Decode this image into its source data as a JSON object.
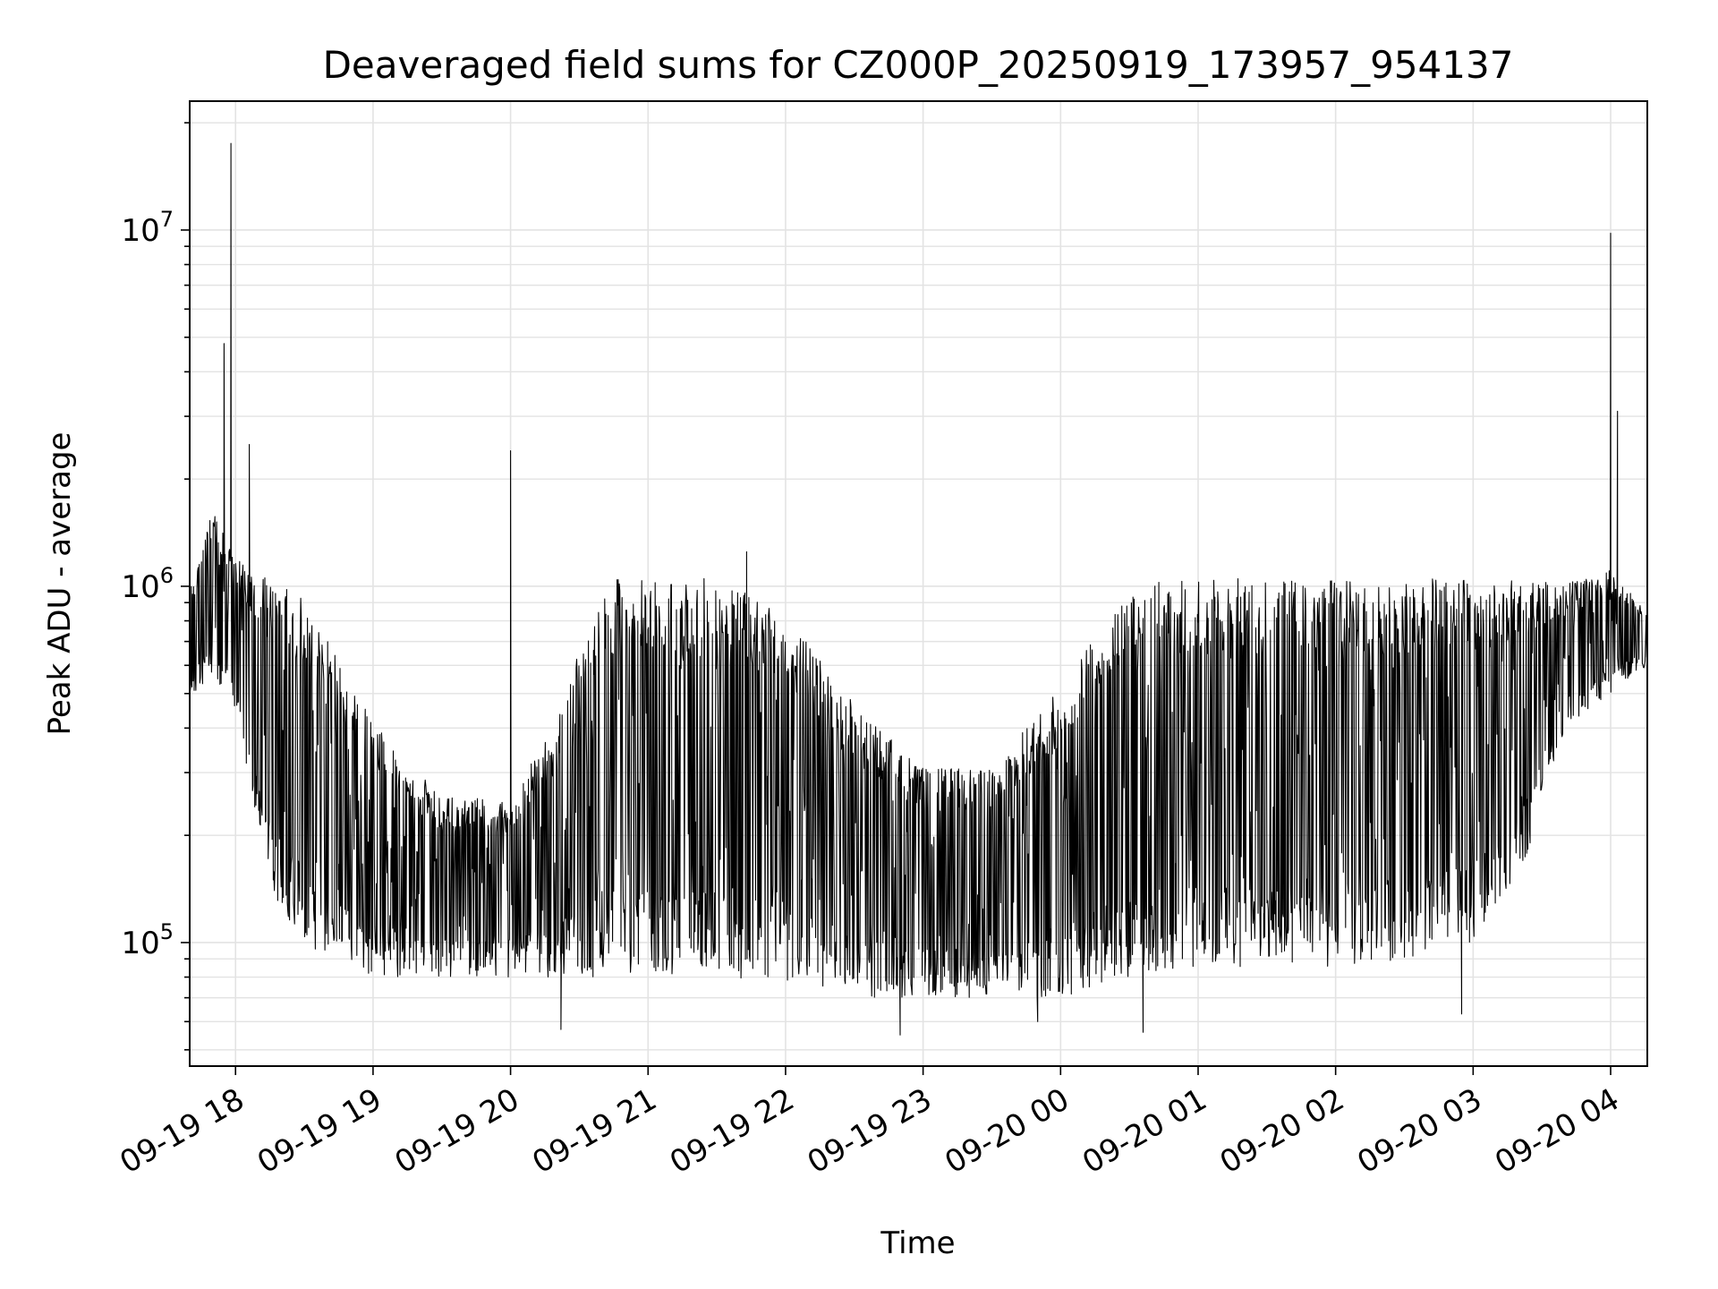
{
  "chart_data": {
    "type": "line",
    "title": "Deaveraged field sums for CZ000P_20250919_173957_954137",
    "xlabel": "Time",
    "ylabel": "Peak ADU - average",
    "yscale": "log",
    "ylim": [
      45000,
      23000000
    ],
    "xlim": [
      "2025-09-19 17:40",
      "2025-09-20 04:16"
    ],
    "grid": true,
    "line_color": "#000000",
    "grid_color": "#e3e3e3",
    "x_ticks": [
      {
        "value": "2025-09-19 18:00",
        "label": "09-19 18"
      },
      {
        "value": "2025-09-19 19:00",
        "label": "09-19 19"
      },
      {
        "value": "2025-09-19 20:00",
        "label": "09-19 20"
      },
      {
        "value": "2025-09-19 21:00",
        "label": "09-19 21"
      },
      {
        "value": "2025-09-19 22:00",
        "label": "09-19 22"
      },
      {
        "value": "2025-09-19 23:00",
        "label": "09-19 23"
      },
      {
        "value": "2025-09-20 00:00",
        "label": "09-20 00"
      },
      {
        "value": "2025-09-20 01:00",
        "label": "09-20 01"
      },
      {
        "value": "2025-09-20 02:00",
        "label": "09-20 02"
      },
      {
        "value": "2025-09-20 03:00",
        "label": "09-20 03"
      },
      {
        "value": "2025-09-20 04:00",
        "label": "09-20 04"
      }
    ],
    "y_ticks": [
      {
        "value": 100000,
        "base": "10",
        "exp": "5"
      },
      {
        "value": 1000000,
        "base": "10",
        "exp": "6"
      },
      {
        "value": 10000000,
        "base": "10",
        "exp": "7"
      }
    ],
    "envelope": [
      {
        "t": "2025-09-19 17:40",
        "low": 480000,
        "high": 950000
      },
      {
        "t": "2025-09-19 17:50",
        "low": 550000,
        "high": 1600000
      },
      {
        "t": "2025-09-19 18:00",
        "low": 420000,
        "high": 1200000
      },
      {
        "t": "2025-09-19 18:15",
        "low": 140000,
        "high": 1000000
      },
      {
        "t": "2025-09-19 18:30",
        "low": 100000,
        "high": 900000
      },
      {
        "t": "2025-09-19 18:45",
        "low": 85000,
        "high": 600000
      },
      {
        "t": "2025-09-19 19:00",
        "low": 80000,
        "high": 400000
      },
      {
        "t": "2025-09-19 19:30",
        "low": 80000,
        "high": 250000
      },
      {
        "t": "2025-09-19 20:00",
        "low": 80000,
        "high": 250000
      },
      {
        "t": "2025-09-19 20:20",
        "low": 80000,
        "high": 400000
      },
      {
        "t": "2025-09-19 20:40",
        "low": 80000,
        "high": 1000000
      },
      {
        "t": "2025-09-19 21:00",
        "low": 80000,
        "high": 1000000
      },
      {
        "t": "2025-09-19 21:30",
        "low": 80000,
        "high": 1000000
      },
      {
        "t": "2025-09-19 22:00",
        "low": 78000,
        "high": 800000
      },
      {
        "t": "2025-09-19 22:30",
        "low": 70000,
        "high": 450000
      },
      {
        "t": "2025-09-19 23:00",
        "low": 70000,
        "high": 300000
      },
      {
        "t": "2025-09-19 23:30",
        "low": 70000,
        "high": 300000
      },
      {
        "t": "2025-09-20 00:00",
        "low": 70000,
        "high": 500000
      },
      {
        "t": "2025-09-20 00:30",
        "low": 80000,
        "high": 1000000
      },
      {
        "t": "2025-09-20 01:00",
        "low": 85000,
        "high": 1000000
      },
      {
        "t": "2025-09-20 01:30",
        "low": 85000,
        "high": 1000000
      },
      {
        "t": "2025-09-20 02:00",
        "low": 85000,
        "high": 1000000
      },
      {
        "t": "2025-09-20 02:30",
        "low": 90000,
        "high": 1000000
      },
      {
        "t": "2025-09-20 03:00",
        "low": 100000,
        "high": 1000000
      },
      {
        "t": "2025-09-20 03:20",
        "low": 150000,
        "high": 1000000
      },
      {
        "t": "2025-09-20 03:40",
        "low": 400000,
        "high": 1000000
      },
      {
        "t": "2025-09-20 04:00",
        "low": 500000,
        "high": 1100000
      },
      {
        "t": "2025-09-20 04:16",
        "low": 600000,
        "high": 850000
      }
    ],
    "spikes": [
      {
        "t": "2025-09-19 17:55",
        "value": 4800000
      },
      {
        "t": "2025-09-19 17:58",
        "value": 17500000
      },
      {
        "t": "2025-09-19 18:06",
        "value": 2500000
      },
      {
        "t": "2025-09-19 20:00",
        "value": 2400000
      },
      {
        "t": "2025-09-19 21:43",
        "value": 1250000
      },
      {
        "t": "2025-09-20 04:00",
        "value": 9800000
      },
      {
        "t": "2025-09-20 04:03",
        "value": 3100000
      }
    ],
    "dips": [
      {
        "t": "2025-09-19 20:22",
        "value": 57000
      },
      {
        "t": "2025-09-19 22:50",
        "value": 55000
      },
      {
        "t": "2025-09-20 00:36",
        "value": 56000
      },
      {
        "t": "2025-09-20 02:55",
        "value": 63000
      },
      {
        "t": "2025-09-19 23:50",
        "value": 60000
      }
    ]
  }
}
